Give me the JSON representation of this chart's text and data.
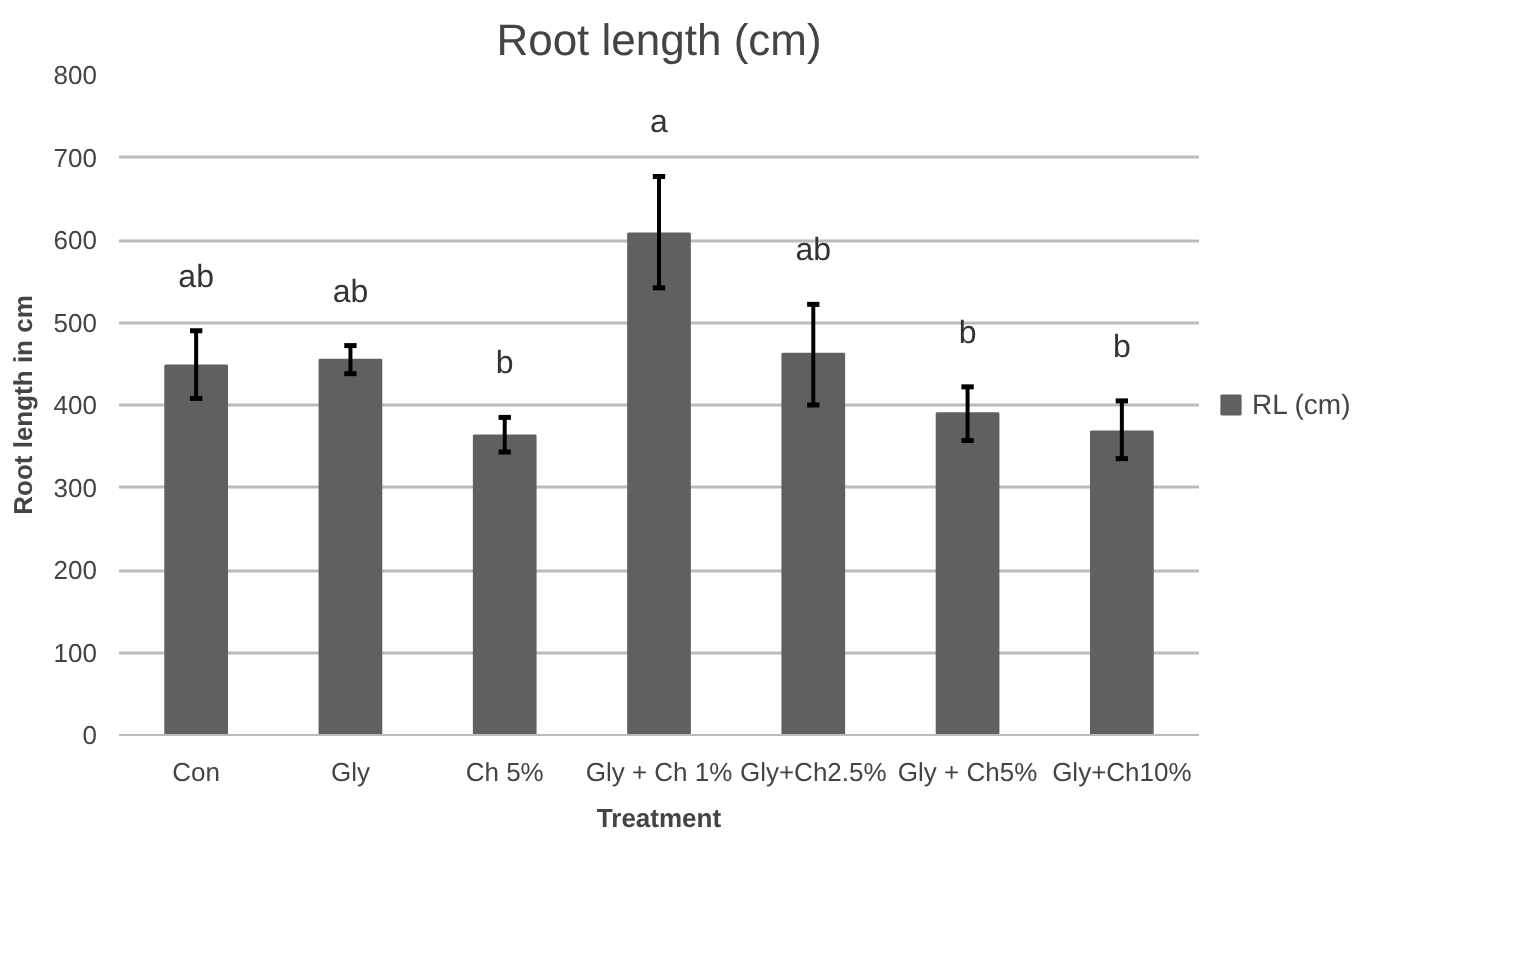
{
  "chart_data": {
    "type": "bar",
    "title": "Root length (cm)",
    "xlabel": "Treatment",
    "ylabel": "Root length in cm",
    "categories": [
      "Con",
      "Gly",
      "Ch 5%",
      "Gly + Ch 1%",
      "Gly+Ch2.5%",
      "Gly + Ch5%",
      "Gly+Ch10%"
    ],
    "series": [
      {
        "name": "RL (cm)",
        "color": "#606060",
        "values": [
          448,
          455,
          363,
          608,
          462,
          390,
          368
        ],
        "errors": [
          [
            408,
            490
          ],
          [
            438,
            472
          ],
          [
            343,
            385
          ],
          [
            542,
            677
          ],
          [
            400,
            522
          ],
          [
            357,
            422
          ],
          [
            335,
            405
          ]
        ]
      }
    ],
    "annotations": [
      "ab",
      "ab",
      "b",
      "a",
      "ab",
      "b",
      "b"
    ],
    "ylim": [
      0,
      800
    ],
    "yticks": [
      0,
      100,
      200,
      300,
      400,
      500,
      600,
      700,
      800
    ],
    "grid": "y",
    "legend": "right"
  }
}
